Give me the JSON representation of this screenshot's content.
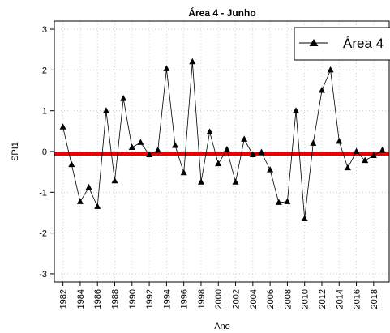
{
  "chart_data": {
    "type": "line",
    "title": "Área 4 - Junho",
    "xlabel": "Ano",
    "ylabel": "SPI1",
    "xlim": [
      1981,
      2019.8
    ],
    "ylim": [
      -3.2,
      3.2
    ],
    "x_ticks": [
      1982,
      1984,
      1986,
      1988,
      1990,
      1992,
      1994,
      1996,
      1998,
      2000,
      2002,
      2004,
      2006,
      2008,
      2010,
      2012,
      2014,
      2016,
      2018
    ],
    "y_ticks": [
      -3,
      -2,
      -1,
      0,
      1,
      2,
      3
    ],
    "grid": true,
    "legend_position": "top-right",
    "series": [
      {
        "name": "Área 4",
        "marker": "triangle",
        "color": "#000000",
        "x": [
          1982,
          1983,
          1984,
          1985,
          1986,
          1987,
          1988,
          1989,
          1990,
          1991,
          1992,
          1993,
          1994,
          1995,
          1996,
          1997,
          1998,
          1999,
          2000,
          2001,
          2002,
          2003,
          2004,
          2005,
          2006,
          2007,
          2008,
          2009,
          2010,
          2011,
          2012,
          2013,
          2014,
          2015,
          2016,
          2017,
          2018,
          2019
        ],
        "y": [
          0.6,
          -0.32,
          -1.23,
          -0.88,
          -1.35,
          1.0,
          -0.72,
          1.3,
          0.1,
          0.22,
          -0.08,
          0.03,
          2.03,
          0.15,
          -0.52,
          2.2,
          -0.75,
          0.48,
          -0.3,
          0.05,
          -0.75,
          0.3,
          -0.08,
          -0.02,
          -0.45,
          -1.25,
          -1.23,
          1.0,
          -1.65,
          0.2,
          1.5,
          2.0,
          0.25,
          -0.4,
          0.0,
          -0.22,
          -0.1,
          0.03
        ]
      }
    ],
    "reference_line": {
      "y": -0.05,
      "color": "#ee0000"
    }
  }
}
